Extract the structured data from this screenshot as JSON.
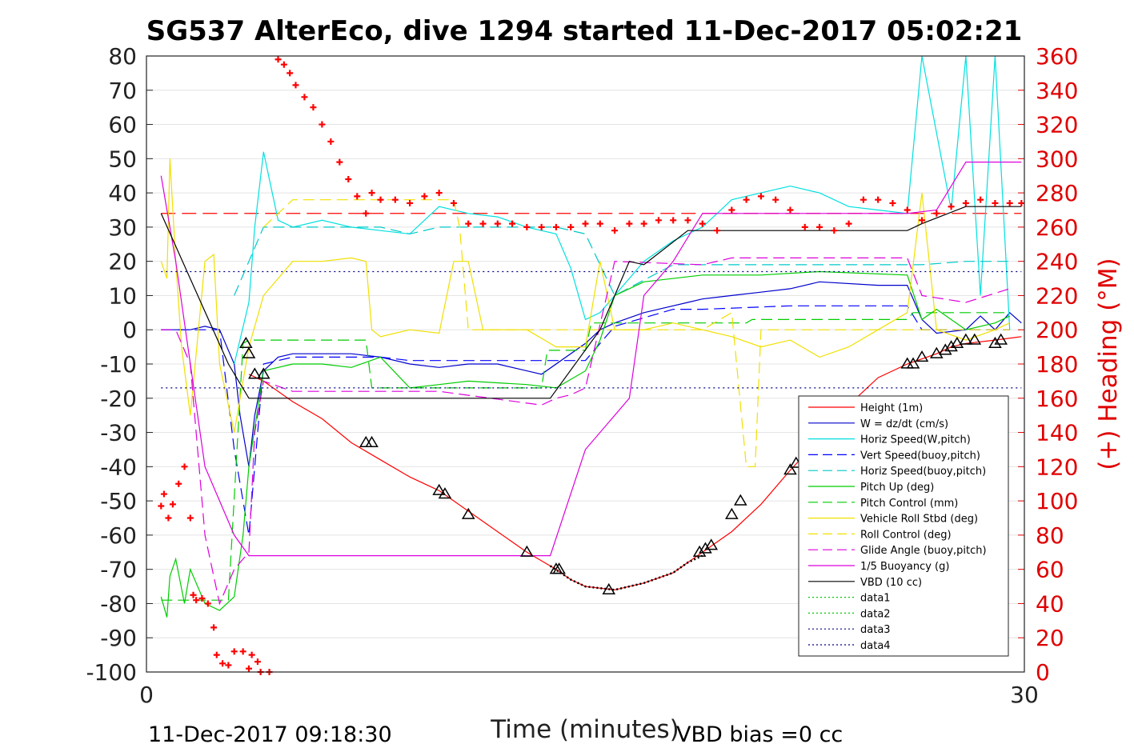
{
  "chart_data": {
    "type": "line",
    "title": "SG537 AlterEco, dive 1294 started 11-Dec-2017 05:02:21",
    "xlabel": "Time (minutes)",
    "ylabel": "",
    "y2label": "(+) Heading (°M)",
    "xlim": [
      0,
      30
    ],
    "ylim": [
      -100,
      80
    ],
    "y2lim": [
      0,
      360
    ],
    "x_ticks": [
      "0",
      "30"
    ],
    "y_ticks": [
      "80",
      "70",
      "60",
      "50",
      "40",
      "30",
      "20",
      "10",
      "0",
      "-10",
      "-20",
      "-30",
      "-40",
      "-50",
      "-60",
      "-70",
      "-80",
      "-90",
      "-100"
    ],
    "y2_ticks": [
      "360",
      "340",
      "320",
      "300",
      "280",
      "260",
      "240",
      "220",
      "200",
      "180",
      "160",
      "140",
      "120",
      "100",
      "80",
      "60",
      "40",
      "20",
      "0"
    ],
    "grid": true,
    "legend_position": "bottom-right",
    "footer_left": "11-Dec-2017 09:18:30",
    "footer_right": "VBD bias =0 cc",
    "colors": {
      "height": "#ff0000",
      "w": "#0000cc",
      "horiz_w": "#00e0e0",
      "vert_buoy": "#0000ff",
      "horiz_buoy": "#00c8c8",
      "pitch": "#00cc00",
      "pitch_ctl": "#00cc00",
      "roll": "#f0e000",
      "roll_ctl": "#f0e000",
      "glide": "#dd00dd",
      "buoy": "#dd00dd",
      "vbd": "#000000",
      "data": "#000088",
      "heading": "#ff0000"
    },
    "series": [
      {
        "name": "Height (1m)",
        "style": "solid",
        "color": "#ff0000",
        "x": [
          3.5,
          4.0,
          5.0,
          6.0,
          7.0,
          8.0,
          9.0,
          10.0,
          11.0,
          12.0,
          13.0,
          14.0,
          14.5,
          15.0,
          16.0,
          17.0,
          18.0,
          19.0,
          20.0,
          21.0,
          22.0,
          23.0,
          24.0,
          25.0,
          26.0,
          27.0,
          27.5,
          28.0,
          29.0,
          29.9
        ],
        "y": [
          -13,
          -15,
          -21,
          -26,
          -33,
          -38,
          -43,
          -47,
          -53,
          -59,
          -65,
          -70,
          -73,
          -75,
          -76,
          -74,
          -71,
          -65,
          -59,
          -51,
          -41,
          -32,
          -22,
          -14,
          -10,
          -7,
          -5,
          -4,
          -3,
          -2
        ]
      },
      {
        "name": "W = dz/dt (cm/s)",
        "style": "solid",
        "color": "#0000cc",
        "x": [
          0.5,
          1.5,
          2.0,
          2.5,
          3.0,
          3.2,
          3.5,
          3.7,
          4.0,
          4.5,
          5.0,
          7.0,
          8.0,
          9.0,
          10.0,
          11.0,
          12.0,
          13.0,
          13.5,
          15.0,
          15.5,
          16.0,
          17.0,
          18.5,
          19.0,
          20.0,
          21.0,
          22.0,
          23.0,
          25.0,
          26.0,
          26.5,
          27.0,
          28.0,
          28.5,
          29.0,
          29.5,
          29.9
        ],
        "y": [
          0,
          0,
          1,
          0,
          -10,
          -25,
          -40,
          -25,
          -12,
          -8,
          -7,
          -7,
          -8,
          -10,
          -11,
          -10,
          -10,
          -12,
          -13,
          -4,
          0,
          2,
          5,
          8,
          9,
          10,
          11,
          12,
          14,
          13,
          13,
          3,
          -1,
          0,
          4,
          0,
          5,
          2
        ]
      },
      {
        "name": "Horiz Speed(W,pitch)",
        "style": "solid",
        "color": "#00e0e0",
        "x": [
          3.0,
          3.5,
          3.7,
          4.0,
          4.3,
          4.5,
          5.0,
          6.0,
          7.0,
          8.0,
          9.0,
          10.0,
          11.0,
          12.0,
          13.0,
          14.0,
          14.5,
          15.0,
          15.5,
          16.0,
          17.0,
          18.0,
          19.0,
          20.0,
          21.0,
          22.0,
          23.0,
          24.0,
          25.0,
          26.0,
          26.5,
          27.5,
          28.0,
          28.5,
          29.0,
          29.5
        ],
        "y": [
          -10,
          8,
          30,
          52,
          40,
          32,
          30,
          32,
          30,
          29,
          28,
          36,
          34,
          33,
          30,
          28,
          18,
          3,
          5,
          10,
          20,
          26,
          30,
          38,
          40,
          42,
          40,
          36,
          35,
          34,
          80,
          35,
          80,
          10,
          80,
          0
        ]
      },
      {
        "name": "Vert Speed(buoy,pitch)",
        "style": "dashed",
        "color": "#0000ff",
        "x": [
          0.5,
          1.5,
          2.0,
          2.5,
          3.0,
          3.5,
          3.7,
          4.0,
          5.0,
          8.0,
          9.0,
          10.0,
          14.0,
          15.0,
          16.0,
          18.0,
          19.0,
          22.0,
          23.0,
          26.0,
          26.5,
          28.0,
          29.5
        ],
        "y": [
          0,
          0,
          0,
          0,
          -35,
          -60,
          -40,
          -10,
          -8,
          -8,
          -9,
          -9,
          -9,
          -9,
          1,
          6,
          6,
          7,
          7,
          7,
          0,
          0,
          0
        ]
      },
      {
        "name": "Horiz Speed(buoy,pitch)",
        "style": "dashed",
        "color": "#00c8c8",
        "x": [
          3.0,
          3.5,
          4.0,
          5.0,
          8.0,
          9.0,
          10.0,
          14.0,
          15.0,
          16.0,
          18.0,
          19.0,
          26.0,
          26.5,
          28.0,
          29.5
        ],
        "y": [
          10,
          20,
          30,
          30,
          30,
          28,
          30,
          30,
          28,
          10,
          19,
          19,
          19,
          19,
          20,
          20
        ]
      },
      {
        "name": "Pitch Up (deg)",
        "style": "solid",
        "color": "#00cc00",
        "x": [
          0.5,
          0.7,
          0.8,
          1.0,
          1.3,
          1.5,
          2.0,
          2.5,
          3.0,
          3.3,
          3.5,
          4.0,
          5.0,
          6.0,
          7.0,
          8.0,
          9.0,
          10.0,
          11.0,
          13.0,
          14.0,
          15.0,
          15.5,
          16.0,
          17.0,
          19.0,
          21.0,
          23.0,
          26.0,
          26.5,
          27.0,
          28.0,
          29.0,
          29.5
        ],
        "y": [
          -78,
          -84,
          -72,
          -67,
          -80,
          -70,
          -80,
          -82,
          -78,
          -60,
          -40,
          -12,
          -10,
          -10,
          -11,
          -8,
          -17,
          -16,
          -15,
          -16,
          -17,
          -12,
          -3,
          10,
          14,
          16,
          16,
          17,
          16,
          3,
          6,
          0,
          2,
          4
        ]
      },
      {
        "name": "Pitch Control (mm)",
        "style": "dashed",
        "color": "#00cc00",
        "x": [
          0.5,
          2.8,
          3.3,
          3.5,
          7.5,
          7.7,
          13.5,
          13.7,
          15.0,
          15.2,
          20.5,
          20.7,
          26.0,
          26.2,
          29.5
        ],
        "y": [
          -79,
          -79,
          -4,
          -3,
          -3,
          -17,
          -17,
          -6,
          -6,
          2,
          2,
          3,
          3,
          5,
          5
        ]
      },
      {
        "name": "Vehicle Roll Stbd (deg)",
        "style": "solid",
        "color": "#f0e000",
        "x": [
          0.5,
          0.7,
          0.8,
          1.0,
          1.2,
          1.5,
          2.0,
          2.3,
          2.5,
          3.0,
          3.5,
          4.0,
          5.0,
          6.0,
          7.0,
          7.5,
          7.7,
          8.0,
          9.0,
          10.0,
          10.5,
          11.0,
          11.5,
          13.0,
          14.0,
          15.0,
          15.5,
          16.0,
          17.0,
          18.0,
          19.0,
          20.0,
          21.0,
          22.0,
          23.0,
          24.0,
          25.0,
          26.0,
          26.5,
          27.0,
          28.0,
          29.0,
          29.5
        ],
        "y": [
          20,
          15,
          50,
          20,
          -5,
          -25,
          20,
          22,
          -10,
          -30,
          -5,
          10,
          20,
          20,
          21,
          20,
          0,
          -2,
          0,
          -1,
          20,
          20,
          0,
          0,
          -5,
          -5,
          20,
          0,
          0,
          2,
          0,
          -2,
          -5,
          -3,
          -8,
          -5,
          0,
          5,
          40,
          0,
          -3,
          0,
          2
        ]
      },
      {
        "name": "Roll Control (deg)",
        "style": "dashed",
        "color": "#f0e000",
        "x": [
          4.0,
          5.0,
          10.5,
          10.7,
          11.0,
          11.5,
          13.0,
          19.0,
          20.0,
          20.5,
          20.8,
          21.0,
          26.0,
          26.5,
          27.0,
          29.5
        ],
        "y": [
          30,
          38,
          38,
          30,
          0,
          0,
          0,
          0,
          5,
          -40,
          -40,
          0,
          0,
          0,
          0,
          0
        ]
      },
      {
        "name": "Glide Angle (buoy,pitch)",
        "style": "dashed",
        "color": "#dd00dd",
        "x": [
          0.5,
          1.0,
          1.5,
          2.0,
          2.5,
          3.0,
          3.5,
          3.7,
          4.0,
          5.0,
          10.0,
          13.5,
          14.0,
          14.5,
          15.0,
          16.0,
          19.0,
          20.0,
          26.0,
          26.5,
          28.0,
          29.5
        ],
        "y": [
          0,
          0,
          -10,
          -60,
          -80,
          -70,
          -65,
          -30,
          -15,
          -18,
          -18,
          -22,
          -20,
          -19,
          -17,
          20,
          19,
          21,
          21,
          10,
          8,
          12
        ]
      },
      {
        "name": "1/5 Buoyancy (g)",
        "style": "solid",
        "color": "#dd00dd",
        "x": [
          0.5,
          1.0,
          2.0,
          2.5,
          3.0,
          3.5,
          4.0,
          13.8,
          15.0,
          16.5,
          17.0,
          18.0,
          19.0,
          20.0,
          26.0,
          27.0,
          28.0,
          29.9
        ],
        "y": [
          45,
          20,
          -40,
          -50,
          -60,
          -66,
          -66,
          -66,
          -35,
          -20,
          10,
          20,
          34,
          34,
          34,
          35,
          49,
          49
        ]
      },
      {
        "name": "VBD (10 cc)",
        "style": "solid",
        "color": "#000000",
        "x": [
          0.5,
          2.8,
          3.5,
          4.0,
          5.0,
          13.8,
          15.5,
          16.5,
          17.0,
          18.5,
          19.5,
          26.0,
          26.5,
          28.0,
          29.9
        ],
        "y": [
          34,
          -10,
          -20,
          -20,
          -20,
          -20,
          0,
          20,
          19,
          29,
          29,
          29,
          31,
          36,
          36
        ]
      },
      {
        "name": "data1",
        "style": "dotted",
        "color": "#00cc00",
        "x": [],
        "y": []
      },
      {
        "name": "data2",
        "style": "dotted",
        "color": "#00cc00",
        "x": [],
        "y": []
      },
      {
        "name": "data3",
        "style": "dotted",
        "color": "#000088",
        "x": [
          0.5,
          29.9
        ],
        "y": [
          17,
          17
        ]
      },
      {
        "name": "data4",
        "style": "dotted",
        "color": "#000088",
        "x": [
          0.5,
          29.9
        ],
        "y": [
          -17,
          -17
        ]
      }
    ],
    "reference_heading": {
      "y2": 268,
      "color": "#ff0000",
      "style": "dashed"
    },
    "heading_points": {
      "color": "#ff0000",
      "x": [
        0.5,
        0.6,
        0.75,
        0.9,
        1.1,
        1.3,
        1.5,
        1.6,
        1.7,
        1.9,
        2.1,
        2.3,
        2.4,
        2.6,
        2.8,
        3.0,
        3.3,
        3.6,
        3.8,
        3.5,
        3.9,
        4.2,
        4.5,
        4.7,
        4.9,
        5.1,
        5.4,
        5.7,
        6.0,
        6.3,
        6.6,
        6.9,
        7.2,
        7.5,
        7.7,
        8.0,
        8.5,
        9.0,
        9.5,
        10.0,
        10.5,
        11.0,
        11.5,
        12.0,
        12.5,
        13.0,
        13.5,
        14.0,
        14.5,
        15.0,
        15.5,
        16.0,
        16.5,
        17.0,
        17.5,
        18.0,
        18.5,
        19.0,
        19.5,
        20.0,
        20.5,
        21.0,
        21.5,
        22.0,
        22.5,
        23.0,
        23.5,
        24.0,
        24.5,
        25.0,
        25.5,
        26.0,
        26.5,
        27.0,
        27.5,
        28.0,
        28.5,
        29.0,
        29.5,
        29.9
      ],
      "y2": [
        97,
        104,
        90,
        98,
        110,
        120,
        90,
        45,
        42,
        43,
        40,
        26,
        10,
        5,
        4,
        12,
        12,
        10,
        6,
        2,
        0,
        0,
        358,
        355,
        350,
        343,
        336,
        330,
        320,
        310,
        298,
        288,
        278,
        268,
        280,
        276,
        276,
        274,
        278,
        280,
        274,
        262,
        262,
        262,
        262,
        260,
        260,
        260,
        260,
        262,
        262,
        258,
        262,
        262,
        264,
        264,
        264,
        262,
        258,
        270,
        276,
        278,
        276,
        270,
        260,
        260,
        258,
        262,
        276,
        276,
        274,
        270,
        264,
        268,
        272,
        274,
        276,
        274,
        274,
        274
      ]
    },
    "triangle_points": {
      "x": [
        3.4,
        3.5,
        3.7,
        4.0,
        7.5,
        7.7,
        10.0,
        10.2,
        11.0,
        13.0,
        14.0,
        14.1,
        15.8,
        18.9,
        19.1,
        19.3,
        20.0,
        20.3,
        22.0,
        22.2,
        22.5,
        23.0,
        26.0,
        26.2,
        26.5,
        27.0,
        27.3,
        27.5,
        27.7,
        28.0,
        28.3,
        29.0,
        29.2
      ],
      "y": [
        -4,
        -7,
        -13,
        -13,
        -33,
        -33,
        -47,
        -48,
        -54,
        -65,
        -70,
        -70,
        -76,
        -65,
        -64,
        -63,
        -54,
        -50,
        -41,
        -39,
        -36,
        -32,
        -10,
        -10,
        -8,
        -7,
        -6,
        -5,
        -4,
        -3,
        -3,
        -4,
        -3
      ]
    },
    "dotted_segment": {
      "x": [
        13.8,
        14.5,
        15.0,
        16.0,
        17.0,
        18.0,
        18.5,
        19.0
      ],
      "y": [
        -69,
        -73,
        -75,
        -76,
        -74,
        -71,
        -68,
        -66
      ]
    }
  }
}
